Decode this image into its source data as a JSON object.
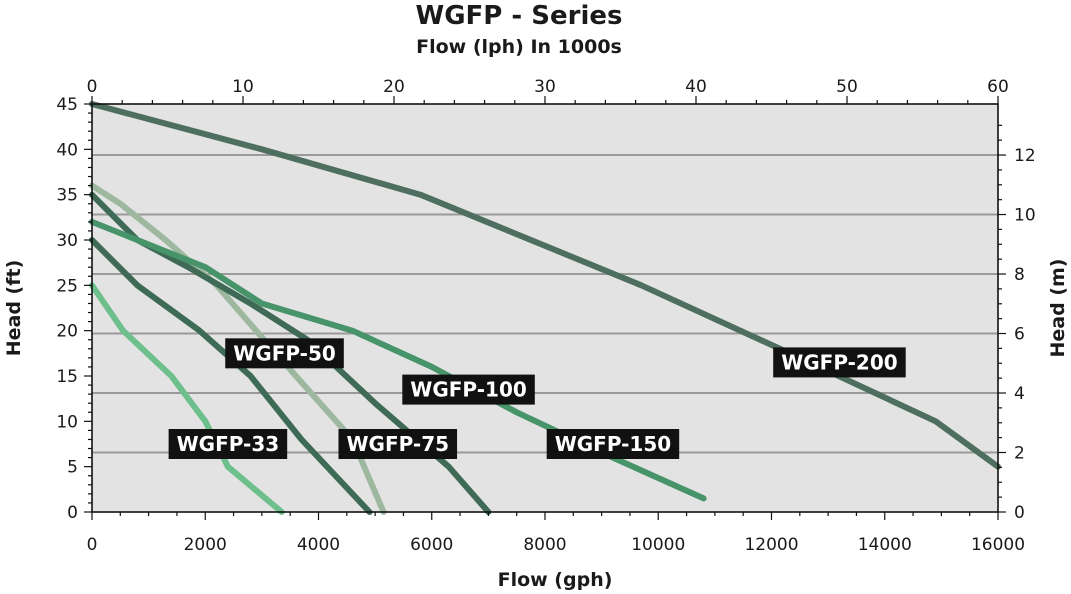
{
  "chart_data": {
    "type": "line",
    "title": "WGFP - Series",
    "subtitle": "Flow (lph) In 1000s",
    "xlabel": "Flow (gph)",
    "ylabel": "Head (ft)",
    "y2label": "Head (m)",
    "xlim": [
      0,
      16000
    ],
    "ylim": [
      0,
      45
    ],
    "x_ticks": [
      "0",
      "2000",
      "4000",
      "6000",
      "8000",
      "10000",
      "12000",
      "14000",
      "16000"
    ],
    "y_ticks": [
      "0",
      "5",
      "10",
      "15",
      "20",
      "25",
      "30",
      "35",
      "40",
      "45"
    ],
    "x2_ticks": [
      "0",
      "10",
      "20",
      "30",
      "40",
      "50",
      "60"
    ],
    "y2_ticks": [
      "0",
      "2",
      "4",
      "6",
      "8",
      "10",
      "12"
    ],
    "grid": "horizontal",
    "colors": {
      "plot_bg": "#e3e3e3",
      "grid": "#9a9a9a",
      "label_bg": "#111111"
    },
    "series": [
      {
        "name": "WGFP-33",
        "color": "#6dbf8c",
        "x": [
          0,
          550,
          1400,
          2000,
          2400,
          3350
        ],
        "y": [
          25,
          20,
          15,
          10,
          5,
          0
        ]
      },
      {
        "name": "WGFP-50",
        "color": "#3d6b55",
        "x": [
          0,
          800,
          1900,
          2800,
          3700,
          4900
        ],
        "y": [
          30,
          25,
          20,
          15,
          8,
          0
        ]
      },
      {
        "name": "WGFP-75",
        "color": "#9db89f",
        "x": [
          0,
          500,
          1300,
          2200,
          2900,
          3600,
          4600,
          5150
        ],
        "y": [
          36,
          34,
          30,
          25,
          20,
          15,
          8,
          0
        ]
      },
      {
        "name": "WGFP-100",
        "color": "#3e6a56",
        "x": [
          0,
          800,
          1700,
          2800,
          3800,
          5000,
          6300,
          7000
        ],
        "y": [
          35,
          30,
          27,
          23,
          19,
          12,
          5,
          0
        ]
      },
      {
        "name": "WGFP-150",
        "color": "#47936a",
        "x": [
          0,
          2000,
          3000,
          4600,
          6000,
          7500,
          9200,
          10800
        ],
        "y": [
          32,
          27,
          23,
          20,
          16,
          11,
          6,
          1.5
        ]
      },
      {
        "name": "WGFP-200",
        "color": "#4e6f5f",
        "x": [
          0,
          3000,
          5800,
          9700,
          12500,
          14900,
          16000
        ],
        "y": [
          45,
          40,
          35,
          25,
          17,
          10,
          5
        ]
      }
    ]
  }
}
